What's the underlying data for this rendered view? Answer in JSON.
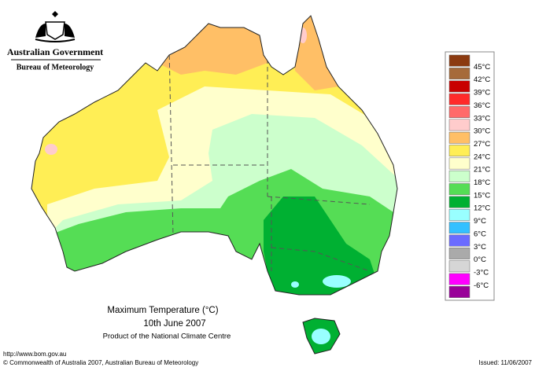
{
  "header": {
    "government": "Australian Government",
    "bureau": "Bureau of Meteorology"
  },
  "legend": {
    "labels": [
      "45°C",
      "42°C",
      "39°C",
      "36°C",
      "33°C",
      "30°C",
      "27°C",
      "24°C",
      "21°C",
      "18°C",
      "15°C",
      "12°C",
      "9°C",
      "6°C",
      "3°C",
      "0°C",
      "-3°C",
      "-6°C"
    ],
    "colors": [
      "#8b3a10",
      "#a66a3a",
      "#c80000",
      "#ff2a2a",
      "#ff6a6a",
      "#ffcccc",
      "#ffbf66",
      "#ffee55",
      "#ffffcc",
      "#ccffcc",
      "#55dd55",
      "#00b032",
      "#99ffff",
      "#33c0ff",
      "#6b6bff",
      "#aaaaaa",
      "#d6d6d6",
      "#ff00ff",
      "#990099"
    ]
  },
  "caption": {
    "title": "Maximum Temperature (°C)",
    "date": "10th June 2007",
    "product": "Product of the National Climate Centre"
  },
  "footer": {
    "url": "http://www.bom.gov.au",
    "copyright": "© Commonwealth of Australia 2007, Australian Bureau of Meteorology",
    "issued": "Issued: 11/06/2007"
  }
}
